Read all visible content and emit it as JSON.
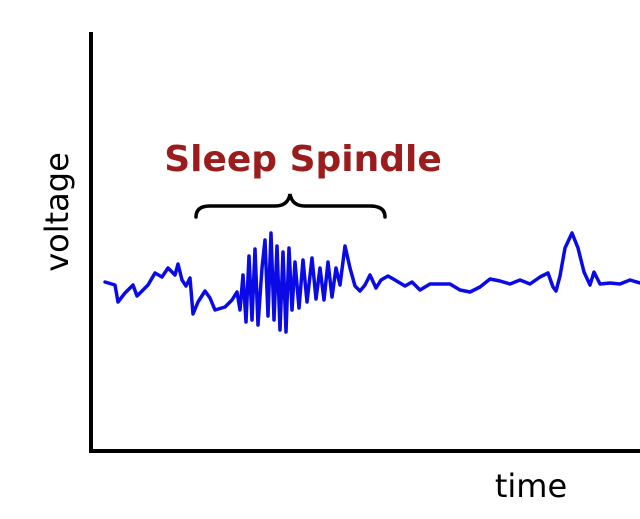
{
  "annotation": "Sleep Spindle",
  "y_axis_label": "voltage",
  "x_axis_label": "time"
}
